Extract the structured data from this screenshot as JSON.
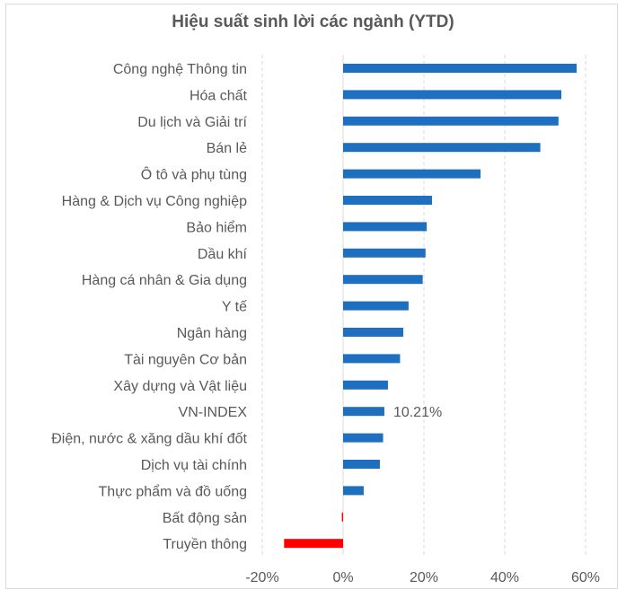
{
  "chart_data": {
    "type": "bar",
    "orientation": "horizontal",
    "title": "Hiệu suất sinh lời các ngành (YTD)",
    "xlabel": "",
    "ylabel": "",
    "xlim": [
      -20,
      60
    ],
    "tick_values": [
      -20,
      0,
      20,
      40,
      60
    ],
    "tick_labels": [
      "-20%",
      "0%",
      "20%",
      "40%",
      "60%"
    ],
    "grid": true,
    "legend": "none",
    "categories": [
      "Công nghệ Thông tin",
      "Hóa chất",
      "Du lịch và Giải trí",
      "Bán lẻ",
      "Ô tô và phụ tùng",
      "Hàng & Dịch vụ Công nghiệp",
      "Bảo hiểm",
      "Dầu khí",
      "Hàng cá nhân & Gia dụng",
      "Y tế",
      "Ngân hàng",
      "Tài nguyên Cơ bản",
      "Xây dựng và Vật liệu",
      "VN-INDEX",
      "Điện, nước & xăng dầu khí đốt",
      "Dịch vụ tài chính",
      "Thực phẩm và đồ uống",
      "Bất động sản",
      "Truyền thông"
    ],
    "values": [
      57.8,
      54.0,
      53.3,
      48.8,
      34.0,
      22.0,
      20.7,
      20.4,
      19.7,
      16.2,
      14.9,
      14.1,
      11.1,
      10.21,
      9.9,
      9.1,
      5.1,
      -0.3,
      -14.6
    ],
    "data_labels": [
      {
        "category": "VN-INDEX",
        "text": "10.21%"
      }
    ],
    "colors": {
      "positive": "#1f6fc0",
      "negative": "#ff0000"
    }
  }
}
